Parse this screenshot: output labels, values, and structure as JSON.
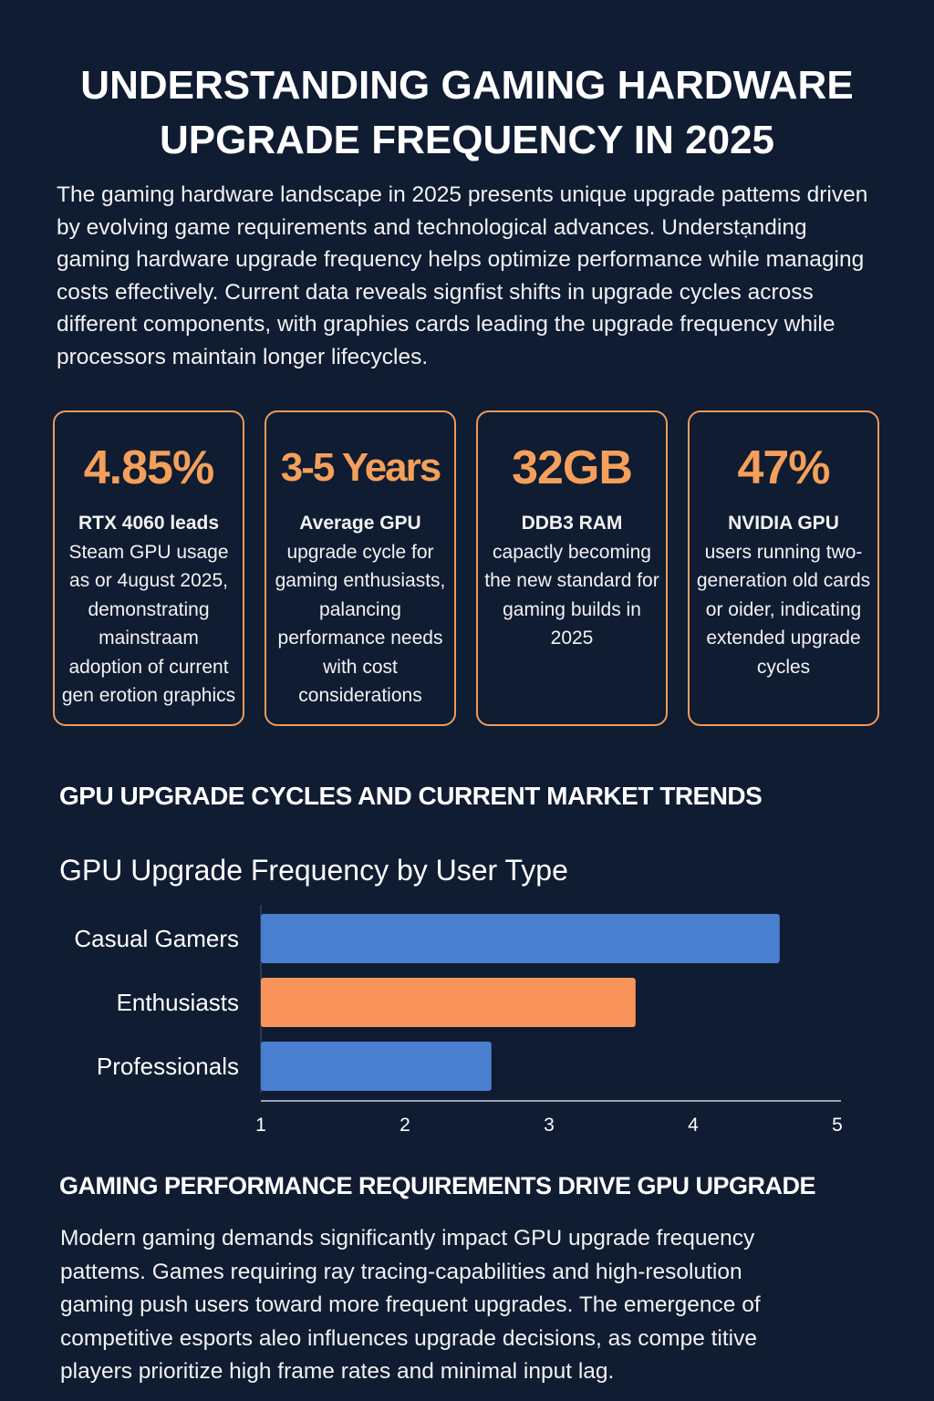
{
  "title_lines": [
    "UNDERSTANDING GAMING HARDWARE",
    "UPGRADE FREQUENCY IN 2025"
  ],
  "intro": "The gaming hardware landscape in 2025 presents unique upgrade pattems driven by evolving game requirements and technological advances. Understạnding gaming hardware upgrade frequency helps optimize performance while managing costs effectively. Current data reveals signfist shifts in upgrade cycles across different components, with graphies cards leading the upgrade frequency while processors maintain longer lifecycles.",
  "cards": [
    {
      "value": "4.85%",
      "lead": "RTX 4060 leads",
      "desc": "Steam GPU usage as or 4ugust 2025, demonstrating mainstraam adoption of current  gen erotion graphics"
    },
    {
      "value": "3-5 Years",
      "lead": "Average GPU",
      "desc": "upgrade cycle for gaming enthusiasts, palancing performance needs with cost considerations"
    },
    {
      "value": "32GB",
      "lead": "DDB3 RAM",
      "desc": "capactly becoming the new standard for gaming builds in 2025"
    },
    {
      "value": "47%",
      "lead": "NVIDIA GPU",
      "desc": "users running two-generation old cards or oider, indicating extended upgrade cycles"
    }
  ],
  "section1_heading": "GPU UPGRADE CYCLES AND CURRENT MARKET TRENDS",
  "chart_data": {
    "type": "bar",
    "orientation": "horizontal",
    "title": "GPU Upgrade Frequency by User Type",
    "categories": [
      "Casual Gamers",
      "Enthusiasts",
      "Professionals"
    ],
    "values": [
      4.6,
      3.6,
      2.6
    ],
    "colors": [
      "#4a7fd0",
      "#f9955a",
      "#4a7fd0"
    ],
    "xlim": [
      1,
      5
    ],
    "xticks": [
      "1",
      "2",
      "3",
      "4",
      "5"
    ],
    "grid": false
  },
  "section2_heading": "GAMING PERFORMANCE REQUIREMENTS DRIVE GPU UPGRADE",
  "outro": "Modern gaming demands significantly impact GPU upgrade frequency pattems. Games requiring ray tracing-capabilities and high-resolution gaming push users toward more frequent upgrades. The emergence of competitive esports aleo influences upgrade decisions, as compe titive players prioritize high frame rates and minimal input lag."
}
